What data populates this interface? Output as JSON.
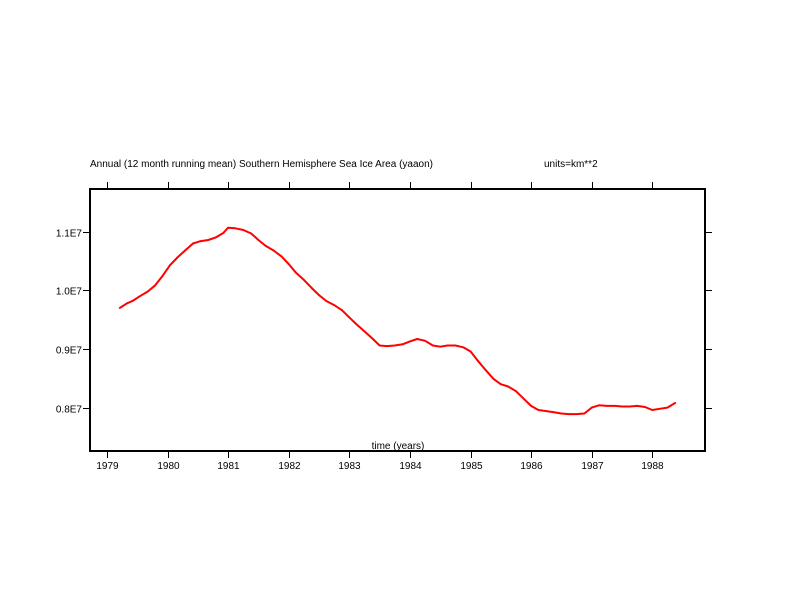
{
  "chart_data": {
    "type": "line",
    "title": "Annual (12 month running mean) Southern Hemisphere Sea Ice Area (yaaon)",
    "units_label": "units=km**2",
    "xlabel": "time (years)",
    "ylabel": "",
    "xlim": [
      1978.72,
      1988.87
    ],
    "ylim": [
      0.726,
      1.173
    ],
    "grid": false,
    "legend": "none",
    "x_ticks": [
      1979,
      1980,
      1981,
      1982,
      1983,
      1984,
      1985,
      1986,
      1987,
      1988
    ],
    "x_tick_labels": [
      "1979",
      "1980",
      "1981",
      "1982",
      "1983",
      "1984",
      "1985",
      "1986",
      "1987",
      "1988"
    ],
    "y_ticks": [
      1.1,
      1.0,
      0.9,
      0.8
    ],
    "y_tick_labels": [
      "1.1E7",
      "1.0E7",
      "0.9E7",
      "0.8E7"
    ],
    "y_scale_note": "values in units of 1E7 km**2",
    "series": [
      {
        "name": "Southern Hemisphere Sea Ice Area",
        "color": "#ff0000",
        "x": [
          1979.21,
          1979.33,
          1979.42,
          1979.54,
          1979.67,
          1979.79,
          1979.92,
          1980.04,
          1980.17,
          1980.29,
          1980.42,
          1980.54,
          1980.67,
          1980.79,
          1980.92,
          1981.0,
          1981.12,
          1981.25,
          1981.38,
          1981.5,
          1981.62,
          1981.75,
          1981.88,
          1982.0,
          1982.12,
          1982.25,
          1982.38,
          1982.5,
          1982.62,
          1982.75,
          1982.88,
          1983.0,
          1983.12,
          1983.25,
          1983.38,
          1983.5,
          1983.62,
          1983.75,
          1983.88,
          1984.0,
          1984.12,
          1984.25,
          1984.38,
          1984.5,
          1984.62,
          1984.75,
          1984.88,
          1985.0,
          1985.12,
          1985.25,
          1985.38,
          1985.5,
          1985.62,
          1985.75,
          1985.88,
          1986.0,
          1986.12,
          1986.25,
          1986.38,
          1986.5,
          1986.62,
          1986.75,
          1986.88,
          1987.0,
          1987.12,
          1987.25,
          1987.38,
          1987.5,
          1987.62,
          1987.75,
          1987.88,
          1988.0,
          1988.12,
          1988.25,
          1988.38
        ],
        "y": [
          0.97,
          0.978,
          0.982,
          0.99,
          0.998,
          1.008,
          1.025,
          1.043,
          1.057,
          1.068,
          1.08,
          1.084,
          1.086,
          1.09,
          1.098,
          1.107,
          1.106,
          1.103,
          1.097,
          1.086,
          1.076,
          1.068,
          1.058,
          1.045,
          1.03,
          1.018,
          1.004,
          0.992,
          0.982,
          0.975,
          0.966,
          0.954,
          0.942,
          0.93,
          0.918,
          0.906,
          0.905,
          0.906,
          0.908,
          0.913,
          0.917,
          0.914,
          0.906,
          0.904,
          0.906,
          0.906,
          0.903,
          0.896,
          0.88,
          0.864,
          0.849,
          0.84,
          0.836,
          0.828,
          0.815,
          0.803,
          0.796,
          0.794,
          0.792,
          0.79,
          0.789,
          0.789,
          0.79,
          0.8,
          0.804,
          0.803,
          0.803,
          0.802,
          0.802,
          0.803,
          0.801,
          0.796,
          0.798,
          0.8,
          0.808
        ]
      }
    ]
  }
}
